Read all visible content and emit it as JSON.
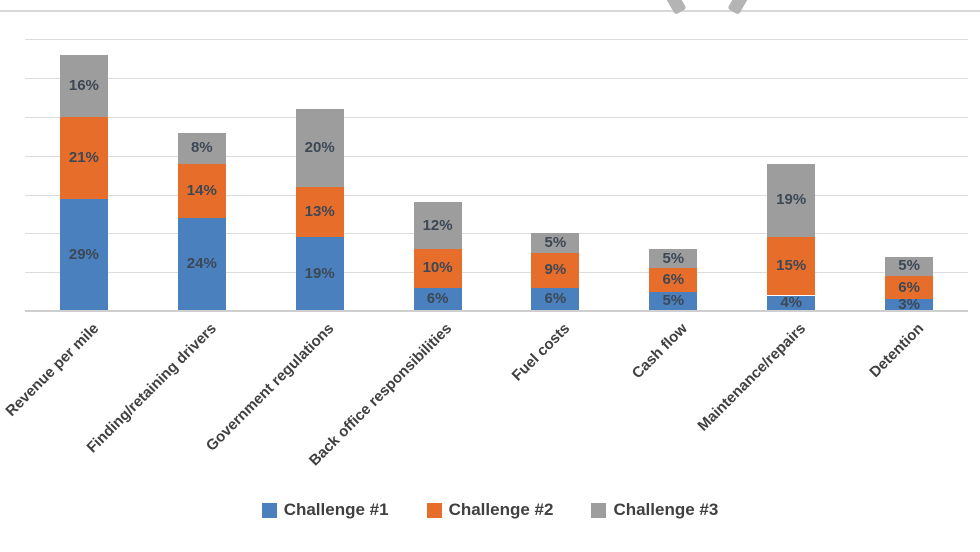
{
  "page": {
    "background": "#ffffff",
    "top_divider_color": "#d8d8d8",
    "logo_mark": {
      "name": "cropped-parentheses-logo-mark",
      "color": "#b4b4b4"
    }
  },
  "chart_data": {
    "type": "bar",
    "stacked": true,
    "title": "",
    "categories": [
      "Revenue per mile",
      "Finding/retaining drivers",
      "Government regulations",
      "Back office responsibilities",
      "Fuel costs",
      "Cash flow",
      "Maintenance/repairs",
      "Detention"
    ],
    "series": [
      {
        "name": "Challenge #1",
        "color": "#4a80be",
        "values": [
          29,
          24,
          19,
          6,
          6,
          5,
          4,
          3
        ]
      },
      {
        "name": "Challenge #2",
        "color": "#e76d2a",
        "values": [
          21,
          14,
          13,
          10,
          9,
          6,
          15,
          6
        ]
      },
      {
        "name": "Challenge #3",
        "color": "#9d9d9d",
        "values": [
          16,
          8,
          20,
          12,
          5,
          5,
          19,
          5
        ]
      }
    ],
    "data_label_suffix": "%",
    "data_label_color": "#3d4855",
    "axis_label_color": "#404040",
    "gridline_color": "#dcdcdc",
    "baseline_color": "#cfcfcf",
    "ylim": [
      0,
      80
    ],
    "grid_interval": 10,
    "grid": true,
    "xlabel": "",
    "ylabel": "",
    "y_axis_labels_visible": false,
    "category_label_rotation_deg": -45,
    "first_category_clipped_at_left_edge": true,
    "legend_position": "bottom"
  },
  "legend": {
    "items": [
      {
        "label": "Challenge #1",
        "color": "#4a80be"
      },
      {
        "label": "Challenge #2",
        "color": "#e76d2a"
      },
      {
        "label": "Challenge #3",
        "color": "#9d9d9d"
      }
    ]
  }
}
